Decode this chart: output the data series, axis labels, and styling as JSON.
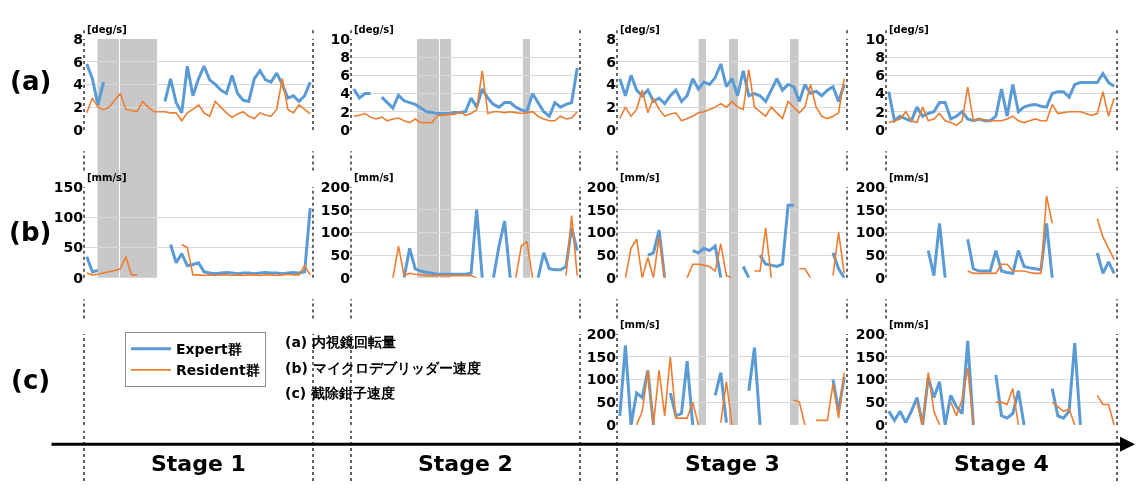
{
  "chart_data": [
    {
      "type": "line",
      "ylabel": "[deg/s]",
      "categories": [
        null,
        null,
        null,
        null,
        null,
        null,
        null,
        null,
        null,
        null,
        null,
        null,
        null,
        null,
        null,
        null,
        null,
        null,
        null,
        null,
        null,
        null,
        null,
        null,
        null,
        null,
        null,
        null,
        null,
        null,
        null,
        null,
        null,
        null,
        null,
        null,
        null,
        null,
        null,
        null,
        null
      ],
      "ylim": [
        0,
        8
      ],
      "yticks": [
        0,
        2,
        4,
        6,
        8
      ],
      "grid": "y",
      "tick_labels": "y",
      "marker": "none",
      "line_style": "solid",
      "annotations": [
        "(a)"
      ],
      "series": [
        {
          "color": "#5b9bd5",
          "values": [
            5.8,
            4.5,
            2.2,
            4.2,
            null,
            null,
            null,
            null,
            null,
            null,
            null,
            null,
            null,
            null,
            2.5,
            4.5,
            2.4,
            1.5,
            5.6,
            3.0,
            4.5,
            5.6,
            4.4,
            4.0,
            3.5,
            3.2,
            4.8,
            3.2,
            2.6,
            2.5,
            4.5,
            5.2,
            4.4,
            4.2,
            5.0,
            4.0,
            2.8,
            3.0,
            2.5,
            3.0,
            4.2
          ]
        },
        {
          "color": "#ed7d31",
          "values": [
            1.5,
            2.8,
            2.0,
            1.8,
            2.0,
            2.6,
            3.2,
            1.8,
            1.7,
            1.6,
            2.5,
            2.0,
            1.6,
            1.6,
            1.6,
            1.5,
            1.5,
            0.8,
            1.5,
            1.8,
            2.2,
            1.5,
            1.2,
            2.5,
            2.0,
            1.5,
            1.1,
            1.4,
            1.6,
            1.2,
            1.0,
            1.5,
            1.3,
            1.2,
            1.8,
            4.5,
            1.8,
            1.5,
            2.2,
            1.8,
            1.4
          ]
        }
      ]
    },
    {
      "type": "line",
      "ylabel": "[deg/s]",
      "categories": [
        null,
        null,
        null,
        null,
        null,
        null,
        null,
        null,
        null,
        null,
        null,
        null,
        null,
        null,
        null,
        null,
        null,
        null,
        null,
        null,
        null,
        null,
        null,
        null,
        null,
        null,
        null,
        null,
        null,
        null,
        null,
        null,
        null,
        null,
        null,
        null,
        null,
        null,
        null,
        null,
        null
      ],
      "ylim": [
        0,
        10
      ],
      "yticks": [
        0,
        2,
        4,
        6,
        8,
        10
      ],
      "grid": "y",
      "tick_labels": "y",
      "marker": "none",
      "line_style": "solid",
      "series": [
        {
          "color": "#5b9bd5",
          "values": [
            4.5,
            3.5,
            4.0,
            4.0,
            null,
            3.6,
            3.0,
            2.4,
            3.8,
            3.2,
            3.0,
            2.8,
            2.4,
            2.0,
            1.9,
            1.8,
            1.8,
            1.8,
            1.9,
            1.9,
            2.0,
            3.5,
            2.5,
            4.5,
            3.5,
            2.8,
            2.5,
            3.0,
            3.0,
            2.5,
            2.2,
            2.0,
            4.0,
            3.0,
            2.0,
            1.5,
            3.0,
            2.5,
            2.8,
            3.0,
            6.8
          ]
        },
        {
          "color": "#ed7d31",
          "values": [
            1.5,
            1.6,
            1.8,
            1.4,
            1.2,
            1.4,
            1.0,
            1.2,
            1.3,
            1.0,
            0.8,
            1.2,
            0.8,
            0.8,
            0.8,
            1.6,
            1.6,
            1.7,
            1.7,
            2.0,
            1.6,
            1.8,
            2.2,
            6.5,
            1.8,
            2.0,
            2.0,
            1.9,
            2.0,
            1.9,
            1.8,
            1.9,
            2.0,
            1.5,
            1.2,
            1.0,
            1.0,
            1.5,
            1.2,
            1.3,
            2.0
          ]
        }
      ]
    },
    {
      "type": "line",
      "ylabel": "[deg/s]",
      "categories": [
        null,
        null,
        null,
        null,
        null,
        null,
        null,
        null,
        null,
        null,
        null,
        null,
        null,
        null,
        null,
        null,
        null,
        null,
        null,
        null,
        null,
        null,
        null,
        null,
        null,
        null,
        null,
        null,
        null,
        null,
        null,
        null,
        null,
        null,
        null,
        null,
        null,
        null,
        null,
        null,
        null
      ],
      "ylim": [
        0,
        8
      ],
      "yticks": [
        0,
        2,
        4,
        6,
        8
      ],
      "grid": "y",
      "tick_labels": "y",
      "marker": "none",
      "line_style": "solid",
      "series": [
        {
          "color": "#5b9bd5",
          "values": [
            4.5,
            3.0,
            4.8,
            3.5,
            3.0,
            3.5,
            2.5,
            2.8,
            2.3,
            3.0,
            3.5,
            2.5,
            3.0,
            4.5,
            3.6,
            4.2,
            4.0,
            4.6,
            5.8,
            3.8,
            4.5,
            3.0,
            5.2,
            3.0,
            3.2,
            3.0,
            2.5,
            3.5,
            4.5,
            3.5,
            4.0,
            3.8,
            2.5,
            4.0,
            3.2,
            3.4,
            3.0,
            3.5,
            3.8,
            2.5,
            4.0
          ]
        },
        {
          "color": "#ed7d31",
          "values": [
            1.0,
            2.0,
            1.2,
            1.8,
            3.5,
            1.5,
            2.8,
            1.8,
            1.2,
            1.4,
            1.5,
            0.8,
            1.0,
            1.2,
            1.5,
            1.6,
            1.8,
            2.0,
            2.3,
            2.0,
            2.5,
            2.0,
            1.8,
            5.3,
            2.0,
            1.6,
            1.2,
            2.0,
            1.5,
            1.0,
            2.5,
            2.0,
            1.5,
            2.0,
            4.0,
            2.0,
            1.2,
            1.0,
            1.2,
            1.5,
            4.5
          ]
        }
      ]
    },
    {
      "type": "line",
      "ylabel": "[deg/s]",
      "categories": [
        null,
        null,
        null,
        null,
        null,
        null,
        null,
        null,
        null,
        null,
        null,
        null,
        null,
        null,
        null,
        null,
        null,
        null,
        null,
        null,
        null,
        null,
        null,
        null,
        null,
        null,
        null,
        null,
        null,
        null,
        null,
        null,
        null,
        null,
        null,
        null,
        null,
        null,
        null,
        null,
        null
      ],
      "ylim": [
        0,
        10
      ],
      "yticks": [
        0,
        2,
        4,
        6,
        8,
        10
      ],
      "grid": "y",
      "tick_labels": "y",
      "marker": "none",
      "line_style": "solid",
      "series": [
        {
          "color": "#5b9bd5",
          "values": [
            4.2,
            1.0,
            1.5,
            1.2,
            1.0,
            2.5,
            1.5,
            1.8,
            2.0,
            3.0,
            3.0,
            1.2,
            1.5,
            2.0,
            1.2,
            1.0,
            1.2,
            1.0,
            1.0,
            1.5,
            4.5,
            1.5,
            5.0,
            2.0,
            2.5,
            2.7,
            2.8,
            2.6,
            2.5,
            4.0,
            4.2,
            4.2,
            3.6,
            5.0,
            5.2,
            5.2,
            5.2,
            5.2,
            6.2,
            5.2,
            4.8
          ]
        },
        {
          "color": "#ed7d31",
          "values": [
            0.8,
            1.0,
            1.2,
            2.0,
            1.0,
            0.8,
            2.5,
            1.0,
            1.2,
            1.8,
            1.0,
            0.8,
            0.5,
            1.0,
            4.7,
            1.0,
            1.2,
            1.1,
            1.0,
            1.0,
            1.0,
            1.2,
            1.5,
            1.0,
            0.8,
            1.0,
            1.2,
            1.0,
            1.0,
            2.8,
            1.8,
            1.9,
            2.0,
            2.0,
            2.0,
            1.8,
            1.6,
            1.8,
            4.2,
            1.5,
            3.5
          ]
        }
      ]
    },
    {
      "type": "line",
      "ylabel": "[mm/s]",
      "categories": [
        null,
        null,
        null,
        null,
        null,
        null,
        null,
        null,
        null,
        null,
        null,
        null,
        null,
        null,
        null,
        null,
        null,
        null,
        null,
        null,
        null,
        null,
        null,
        null,
        null,
        null,
        null,
        null,
        null,
        null,
        null,
        null,
        null,
        null,
        null,
        null,
        null,
        null,
        null,
        null,
        null
      ],
      "ylim": [
        0,
        150
      ],
      "yticks": [
        0,
        50,
        100,
        150
      ],
      "grid": "y",
      "tick_labels": "y",
      "marker": "none",
      "line_style": "solid",
      "legend": "bottom",
      "annotations": [
        "(b)",
        "Stage 1",
        "(a) 内視鏡回転量",
        "(b) マイクロデブリッダー速度",
        "(c) 截除鉗子速度"
      ],
      "series": [
        {
          "name": "Expert群",
          "color": "#5b9bd5",
          "values": [
            35,
            10,
            12,
            null,
            null,
            null,
            null,
            null,
            null,
            null,
            null,
            null,
            null,
            null,
            null,
            55,
            25,
            40,
            20,
            22,
            25,
            10,
            8,
            7,
            8,
            9,
            8,
            7,
            8,
            8,
            7,
            8,
            9,
            8,
            8,
            7,
            8,
            9,
            8,
            10,
            115
          ]
        },
        {
          "name": "Resident群",
          "color": "#ed7d31",
          "values": [
            8,
            5,
            6,
            8,
            10,
            12,
            15,
            35,
            5,
            5,
            null,
            null,
            null,
            null,
            null,
            null,
            null,
            55,
            50,
            5,
            5,
            4,
            5,
            4,
            5,
            5,
            4,
            5,
            4,
            5,
            5,
            4,
            5,
            5,
            4,
            5,
            6,
            5,
            5,
            20,
            5
          ]
        }
      ]
    },
    {
      "type": "line",
      "ylabel": "[mm/s]",
      "categories": [
        null,
        null,
        null,
        null,
        null,
        null,
        null,
        null,
        null,
        null,
        null,
        null,
        null,
        null,
        null,
        null,
        null,
        null,
        null,
        null,
        null,
        null,
        null,
        null,
        null,
        null,
        null,
        null,
        null,
        null,
        null,
        null,
        null,
        null,
        null,
        null,
        null,
        null,
        null,
        null,
        null
      ],
      "ylim": [
        0,
        200
      ],
      "yticks": [
        0,
        50,
        100,
        150,
        200
      ],
      "grid": "y",
      "tick_labels": "y",
      "marker": "none",
      "line_style": "solid",
      "annotations": [
        "Stage 2"
      ],
      "series": [
        {
          "color": "#5b9bd5",
          "values": [
            null,
            null,
            null,
            null,
            null,
            null,
            null,
            null,
            null,
            0,
            65,
            20,
            15,
            12,
            10,
            8,
            8,
            8,
            8,
            8,
            8,
            10,
            150,
            0,
            null,
            0,
            70,
            125,
            0,
            null,
            null,
            null,
            null,
            0,
            55,
            20,
            18,
            18,
            25,
            110,
            60
          ]
        },
        {
          "color": "#ed7d31",
          "values": [
            null,
            null,
            null,
            null,
            null,
            null,
            null,
            0,
            70,
            5,
            10,
            8,
            7,
            5,
            5,
            5,
            5,
            5,
            5,
            5,
            5,
            5,
            0,
            null,
            null,
            null,
            null,
            null,
            null,
            0,
            70,
            80,
            0,
            null,
            null,
            null,
            null,
            null,
            5,
            137,
            5
          ]
        }
      ]
    },
    {
      "type": "line",
      "ylabel": "[mm/s]",
      "categories": [
        null,
        null,
        null,
        null,
        null,
        null,
        null,
        null,
        null,
        null,
        null,
        null,
        null,
        null,
        null,
        null,
        null,
        null,
        null,
        null,
        null,
        null,
        null,
        null,
        null,
        null,
        null,
        null,
        null,
        null,
        null,
        null,
        null,
        null,
        null,
        null,
        null,
        null,
        null,
        null,
        null
      ],
      "ylim": [
        0,
        200
      ],
      "yticks": [
        0,
        50,
        100,
        150,
        200
      ],
      "grid": "y",
      "tick_labels": "y",
      "marker": "none",
      "line_style": "solid",
      "series": [
        {
          "color": "#5b9bd5",
          "values": [
            null,
            null,
            null,
            null,
            null,
            50,
            55,
            105,
            0,
            null,
            null,
            null,
            null,
            60,
            55,
            65,
            60,
            70,
            0,
            null,
            null,
            null,
            25,
            0,
            null,
            50,
            30,
            28,
            25,
            30,
            160,
            160,
            null,
            null,
            null,
            null,
            null,
            null,
            55,
            20,
            0
          ]
        },
        {
          "color": "#ed7d31",
          "values": [
            null,
            0,
            65,
            85,
            0,
            45,
            0,
            90,
            0,
            null,
            null,
            null,
            0,
            30,
            30,
            28,
            25,
            15,
            75,
            5,
            0,
            null,
            null,
            null,
            15,
            15,
            110,
            0,
            null,
            null,
            null,
            null,
            20,
            20,
            0,
            null,
            null,
            null,
            5,
            100,
            10
          ]
        }
      ]
    },
    {
      "type": "line",
      "ylabel": "[mm/s]",
      "categories": [
        null,
        null,
        null,
        null,
        null,
        null,
        null,
        null,
        null,
        null,
        null,
        null,
        null,
        null,
        null,
        null,
        null,
        null,
        null,
        null,
        null,
        null,
        null,
        null,
        null,
        null,
        null,
        null,
        null,
        null,
        null,
        null,
        null,
        null,
        null,
        null,
        null,
        null,
        null,
        null,
        null
      ],
      "ylim": [
        0,
        200
      ],
      "yticks": [
        0,
        50,
        100,
        150,
        200
      ],
      "grid": "y",
      "tick_labels": "y",
      "marker": "none",
      "line_style": "solid",
      "series": [
        {
          "color": "#5b9bd5",
          "values": [
            null,
            null,
            null,
            null,
            null,
            null,
            null,
            60,
            5,
            120,
            0,
            null,
            null,
            null,
            85,
            20,
            15,
            15,
            15,
            60,
            15,
            12,
            10,
            60,
            25,
            22,
            20,
            18,
            120,
            0,
            null,
            null,
            null,
            null,
            null,
            null,
            null,
            55,
            10,
            35,
            10
          ]
        },
        {
          "color": "#ed7d31",
          "values": [
            null,
            null,
            null,
            null,
            null,
            null,
            null,
            null,
            null,
            null,
            null,
            null,
            null,
            null,
            15,
            10,
            10,
            10,
            10,
            10,
            30,
            30,
            15,
            15,
            15,
            12,
            10,
            10,
            180,
            120,
            null,
            null,
            null,
            null,
            null,
            null,
            null,
            130,
            90,
            65,
            40
          ]
        }
      ]
    },
    {
      "type": "line",
      "ylabel": "[mm/s]",
      "categories": [
        null,
        null,
        null,
        null,
        null,
        null,
        null,
        null,
        null,
        null,
        null,
        null,
        null,
        null,
        null,
        null,
        null,
        null,
        null,
        null,
        null,
        null,
        null,
        null,
        null,
        null,
        null,
        null,
        null,
        null,
        null,
        null,
        null,
        null,
        null,
        null,
        null,
        null,
        null,
        null,
        null
      ],
      "ylim": [
        0,
        200
      ],
      "yticks": [
        0,
        50,
        100,
        150,
        200
      ],
      "grid": "y",
      "tick_labels": "y",
      "marker": "none",
      "line_style": "solid",
      "annotations": [
        "(c)",
        "Stage 3"
      ],
      "series": [
        {
          "color": "#5b9bd5",
          "values": [
            20,
            175,
            0,
            70,
            60,
            120,
            0,
            null,
            null,
            70,
            20,
            25,
            140,
            0,
            null,
            null,
            null,
            65,
            115,
            5,
            null,
            null,
            null,
            75,
            170,
            0,
            null,
            null,
            null,
            null,
            null,
            null,
            null,
            null,
            null,
            null,
            null,
            null,
            100,
            30,
            105
          ]
        },
        {
          "color": "#ed7d31",
          "values": [
            null,
            null,
            null,
            0,
            30,
            120,
            0,
            120,
            20,
            150,
            15,
            15,
            15,
            50,
            0,
            null,
            null,
            null,
            5,
            95,
            0,
            null,
            null,
            null,
            null,
            null,
            null,
            null,
            null,
            null,
            null,
            55,
            50,
            0,
            null,
            10,
            10,
            10,
            90,
            15,
            115
          ]
        }
      ]
    },
    {
      "type": "line",
      "ylabel": "[mm/s]",
      "categories": [
        null,
        null,
        null,
        null,
        null,
        null,
        null,
        null,
        null,
        null,
        null,
        null,
        null,
        null,
        null,
        null,
        null,
        null,
        null,
        null,
        null,
        null,
        null,
        null,
        null,
        null,
        null,
        null,
        null,
        null,
        null,
        null,
        null,
        null,
        null,
        null,
        null,
        null,
        null,
        null,
        null
      ],
      "ylim": [
        0,
        200
      ],
      "yticks": [
        0,
        50,
        100,
        150,
        200
      ],
      "grid": "y",
      "tick_labels": "y",
      "marker": "none",
      "line_style": "solid",
      "annotations": [
        "Stage 4"
      ],
      "series": [
        {
          "color": "#5b9bd5",
          "values": [
            30,
            10,
            30,
            5,
            30,
            60,
            0,
            105,
            60,
            95,
            0,
            65,
            40,
            25,
            185,
            0,
            null,
            null,
            null,
            110,
            20,
            15,
            25,
            75,
            0,
            null,
            null,
            null,
            null,
            80,
            20,
            15,
            30,
            180,
            0,
            null,
            null,
            null,
            null,
            null,
            null
          ]
        },
        {
          "color": "#ed7d31",
          "values": [
            null,
            null,
            null,
            null,
            null,
            50,
            0,
            115,
            30,
            0,
            null,
            50,
            20,
            55,
            125,
            0,
            null,
            null,
            null,
            50,
            50,
            45,
            80,
            0,
            null,
            null,
            null,
            null,
            null,
            50,
            40,
            30,
            35,
            0,
            null,
            null,
            null,
            65,
            45,
            45,
            0
          ]
        }
      ]
    }
  ]
}
